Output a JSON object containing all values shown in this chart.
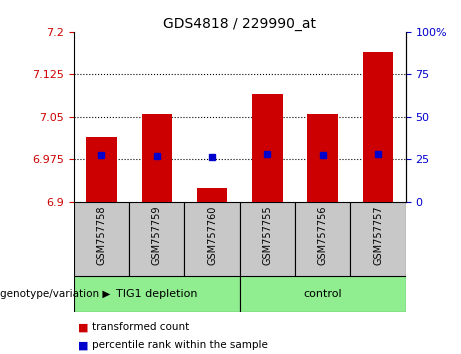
{
  "title": "GDS4818 / 229990_at",
  "samples": [
    "GSM757758",
    "GSM757759",
    "GSM757760",
    "GSM757755",
    "GSM757756",
    "GSM757757"
  ],
  "red_values": [
    7.015,
    7.055,
    6.925,
    7.09,
    7.055,
    7.165
  ],
  "blue_square_y": [
    6.983,
    6.981,
    6.979,
    6.984,
    6.983,
    6.984
  ],
  "y_min": 6.9,
  "y_max": 7.2,
  "y_ticks": [
    6.9,
    6.975,
    7.05,
    7.125,
    7.2
  ],
  "y_tick_labels": [
    "6.9",
    "6.975",
    "7.05",
    "7.125",
    "7.2"
  ],
  "y2_ticks": [
    0,
    25,
    50,
    75,
    100
  ],
  "y2_tick_labels": [
    "0",
    "25",
    "50",
    "75",
    "100%"
  ],
  "bar_bottom": 6.9,
  "red_color": "#cc0000",
  "blue_color": "#0000cc",
  "bg_color": "#c8c8c8",
  "plot_bg": "#ffffff",
  "bar_width": 0.55,
  "legend_red": "transformed count",
  "legend_blue": "percentile rank within the sample",
  "genotype_label": "genotype/variation",
  "group1_label": "TIG1 depletion",
  "group2_label": "control",
  "group_color": "#90ee90"
}
